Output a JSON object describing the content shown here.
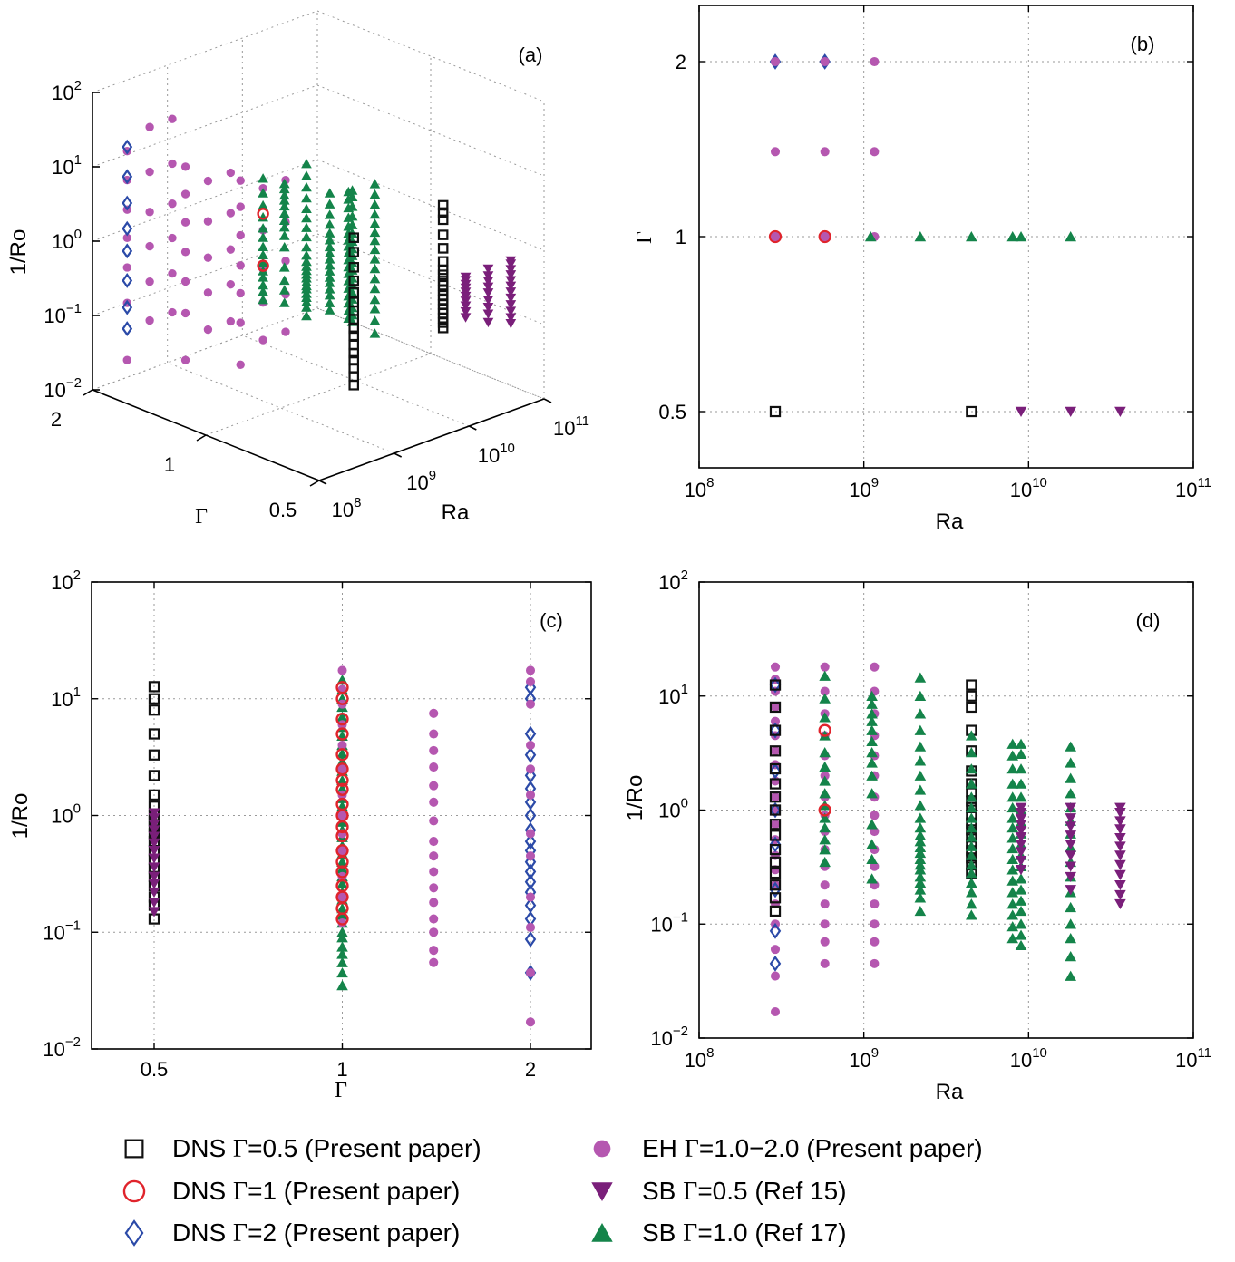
{
  "colors": {
    "dns_gamma_0_5": "#111111",
    "dns_gamma_1": "#e0242c",
    "dns_gamma_2": "#2b4aa8",
    "eh": "#b557b0",
    "sb_gamma_0_5": "#7a1f7a",
    "sb_gamma_1": "#14844a"
  },
  "series_styles": {
    "dns_gamma_0_5": "open-square",
    "dns_gamma_1": "open-circle",
    "dns_gamma_2": "open-diamond",
    "eh": "filled-circle",
    "sb_gamma_0_5": "filled-down-triangle",
    "sb_gamma_1": "filled-up-triangle"
  },
  "chart_data": [
    {
      "panel": "(a)",
      "type": "scatter",
      "projection": "3d",
      "xlabel": "Ra",
      "ylabel": "Γ",
      "zlabel": "1/Ro",
      "x_ticks": [
        {
          "base": "10",
          "exp": "8"
        },
        {
          "base": "10",
          "exp": "9"
        },
        {
          "base": "10",
          "exp": "10"
        },
        {
          "base": "10",
          "exp": "11"
        }
      ],
      "y_ticks": [
        "0.5",
        "1",
        "2"
      ],
      "z_ticks": [
        {
          "base": "10",
          "exp": "−2"
        },
        {
          "base": "10",
          "exp": "−1"
        },
        {
          "base": "10",
          "exp": "0"
        },
        {
          "base": "10",
          "exp": "1"
        },
        {
          "base": "10",
          "exp": "2"
        }
      ],
      "xlim": [
        100000000,
        100000000000
      ],
      "zlim": [
        0.01,
        100
      ],
      "log_x": true,
      "log_z": true,
      "grid": true
    },
    {
      "panel": "(b)",
      "type": "scatter",
      "xlabel": "Ra",
      "ylabel": "Γ",
      "x_ticks": [
        {
          "base": "10",
          "exp": "8"
        },
        {
          "base": "10",
          "exp": "9"
        },
        {
          "base": "10",
          "exp": "10"
        },
        {
          "base": "10",
          "exp": "11"
        }
      ],
      "y_ticks": [
        "0.5",
        "1",
        "2"
      ],
      "xlim": [
        100000000,
        100000000000
      ],
      "log_x": true,
      "grid": true,
      "series": [
        {
          "key": "dns_gamma_0_5",
          "points": [
            [
              290000000,
              0.5
            ],
            [
              4500000000,
              0.5
            ]
          ]
        },
        {
          "key": "dns_gamma_1",
          "points": [
            [
              290000000,
              1
            ],
            [
              580000000,
              1
            ]
          ]
        },
        {
          "key": "dns_gamma_2",
          "points": [
            [
              290000000,
              2
            ],
            [
              580000000,
              2
            ]
          ]
        },
        {
          "key": "eh",
          "points": [
            [
              290000000,
              2
            ],
            [
              290000000,
              1.4
            ],
            [
              290000000,
              1
            ],
            [
              580000000,
              2
            ],
            [
              580000000,
              1.4
            ],
            [
              580000000,
              1
            ],
            [
              1160000000,
              2
            ],
            [
              1160000000,
              1.4
            ],
            [
              1160000000,
              1
            ]
          ]
        },
        {
          "key": "sb_gamma_0_5",
          "points": [
            [
              9000000000,
              0.5
            ],
            [
              18000000000,
              0.5
            ],
            [
              36000000000,
              0.5
            ]
          ]
        },
        {
          "key": "sb_gamma_1",
          "points": [
            [
              1100000000,
              1
            ],
            [
              2200000000,
              1
            ],
            [
              4500000000,
              1
            ],
            [
              8000000000,
              1
            ],
            [
              9000000000,
              1
            ],
            [
              18000000000,
              1
            ]
          ]
        }
      ]
    },
    {
      "panel": "(c)",
      "type": "scatter",
      "xlabel": "Γ",
      "ylabel": "1/Ro",
      "x_ticks": [
        "0.5",
        "1",
        "2"
      ],
      "y_ticks": [
        {
          "base": "10",
          "exp": "−2"
        },
        {
          "base": "10",
          "exp": "−1"
        },
        {
          "base": "10",
          "exp": "0"
        },
        {
          "base": "10",
          "exp": "1"
        },
        {
          "base": "10",
          "exp": "2"
        }
      ],
      "ylim": [
        0.01,
        100
      ],
      "log_y": true,
      "grid": true,
      "series": [
        {
          "key": "dns_gamma_0_5",
          "gamma": 0.5,
          "values": [
            0.13,
            0.17,
            0.2,
            0.25,
            0.3,
            0.35,
            0.42,
            0.5,
            0.6,
            0.7,
            0.8,
            0.9,
            1,
            1.2,
            1.5,
            2.2,
            3.3,
            5,
            8,
            10,
            12.7
          ]
        },
        {
          "key": "sb_gamma_0_5",
          "gamma": 0.5,
          "values": [
            0.15,
            0.18,
            0.22,
            0.26,
            0.3,
            0.36,
            0.43,
            0.5,
            0.58,
            0.66,
            0.75,
            0.84,
            0.95,
            1.05
          ]
        },
        {
          "key": "sb_gamma_1",
          "gamma": 1,
          "values": [
            0.035,
            0.045,
            0.055,
            0.065,
            0.075,
            0.09,
            0.1,
            0.12,
            0.14,
            0.16,
            0.19,
            0.22,
            0.26,
            0.3,
            0.35,
            0.4,
            0.47,
            0.55,
            0.65,
            0.75,
            0.88,
            1,
            1.2,
            1.4,
            1.7,
            2,
            2.4,
            2.9,
            3.4,
            4,
            4.8,
            5.7,
            7,
            8.5,
            10,
            12,
            14.5
          ]
        },
        {
          "key": "eh",
          "gamma": 1,
          "values": [
            0.12,
            0.2,
            0.3,
            0.5,
            0.7,
            1,
            1.5,
            2.5,
            4,
            6,
            9,
            12,
            17.5
          ]
        },
        {
          "key": "dns_gamma_1",
          "gamma": 1,
          "values": [
            0.13,
            0.16,
            0.2,
            0.25,
            0.33,
            0.4,
            0.5,
            0.67,
            0.8,
            1,
            1.25,
            1.67,
            2,
            2.5,
            3.33,
            5,
            6.7,
            10,
            12.5
          ]
        },
        {
          "key": "eh",
          "gamma": 1.4,
          "values": [
            0.055,
            0.07,
            0.1,
            0.13,
            0.18,
            0.24,
            0.33,
            0.45,
            0.6,
            0.9,
            1.3,
            1.8,
            2.6,
            3.6,
            5,
            7.5
          ]
        },
        {
          "key": "dns_gamma_2",
          "gamma": 2,
          "values": [
            0.045,
            0.087,
            0.13,
            0.17,
            0.22,
            0.27,
            0.33,
            0.4,
            0.5,
            0.6,
            0.75,
            1,
            1.3,
            1.7,
            2.2,
            3.3,
            5,
            10,
            12.5
          ]
        },
        {
          "key": "eh",
          "gamma": 2,
          "values": [
            0.017,
            0.045,
            0.11,
            0.2,
            0.45,
            0.7,
            1.5,
            2.5,
            4,
            9,
            14,
            17.5
          ]
        }
      ]
    },
    {
      "panel": "(d)",
      "type": "scatter",
      "xlabel": "Ra",
      "ylabel": "1/Ro",
      "x_ticks": [
        {
          "base": "10",
          "exp": "8"
        },
        {
          "base": "10",
          "exp": "9"
        },
        {
          "base": "10",
          "exp": "10"
        },
        {
          "base": "10",
          "exp": "11"
        }
      ],
      "y_ticks": [
        {
          "base": "10",
          "exp": "−2"
        },
        {
          "base": "10",
          "exp": "−1"
        },
        {
          "base": "10",
          "exp": "0"
        },
        {
          "base": "10",
          "exp": "1"
        },
        {
          "base": "10",
          "exp": "2"
        }
      ],
      "xlim": [
        100000000,
        100000000000
      ],
      "ylim": [
        0.01,
        100
      ],
      "log_x": true,
      "log_y": true,
      "grid": true,
      "series": [
        {
          "key": "eh",
          "ra": 290000000,
          "values": [
            0.017,
            0.035,
            0.06,
            0.1,
            0.15,
            0.22,
            0.3,
            0.4,
            0.55,
            0.75,
            1,
            1.3,
            1.8,
            2.5,
            3.3,
            4.5,
            6,
            8,
            11,
            14,
            18
          ]
        },
        {
          "key": "dns_gamma_2",
          "ra": 290000000,
          "values": [
            0.045,
            0.087,
            0.2,
            0.5,
            1,
            2.2,
            5,
            12.5
          ]
        },
        {
          "key": "dns_gamma_0_5",
          "ra": 290000000,
          "values": [
            0.13,
            0.17,
            0.22,
            0.28,
            0.35,
            0.45,
            0.6,
            0.75,
            1,
            1.3,
            1.7,
            2.3,
            3.3,
            5,
            8,
            12.5
          ]
        },
        {
          "key": "eh",
          "ra": 580000000,
          "values": [
            0.045,
            0.07,
            0.1,
            0.15,
            0.22,
            0.32,
            0.45,
            0.65,
            0.9,
            1.3,
            2,
            3,
            4.5,
            7,
            11,
            18
          ]
        },
        {
          "key": "sb_gamma_1",
          "ra": 580000000,
          "values": [
            0.35,
            0.45,
            0.55,
            0.7,
            0.85,
            1.1,
            1.4,
            1.8,
            2.4,
            3.2,
            4.5,
            6.5,
            9.5,
            15
          ]
        },
        {
          "key": "dns_gamma_1",
          "ra": 580000000,
          "values": [
            1,
            5
          ]
        },
        {
          "key": "eh",
          "ra": 1160000000,
          "values": [
            0.045,
            0.07,
            0.1,
            0.15,
            0.22,
            0.32,
            0.45,
            0.65,
            0.9,
            1.3,
            2,
            3,
            4.5,
            7,
            11,
            18
          ]
        },
        {
          "key": "sb_gamma_1",
          "ra": 1120000000,
          "values": [
            0.25,
            0.37,
            0.5,
            0.75,
            1.4,
            2,
            2.6,
            3.2,
            4,
            5,
            6,
            7,
            8.5,
            10
          ]
        },
        {
          "key": "sb_gamma_1",
          "ra": 2200000000,
          "values": [
            0.13,
            0.17,
            0.2,
            0.23,
            0.26,
            0.3,
            0.33,
            0.37,
            0.42,
            0.47,
            0.53,
            0.6,
            0.7,
            0.85,
            1.1,
            1.5,
            2,
            2.7,
            3.6,
            5,
            7,
            10,
            14.5
          ]
        },
        {
          "key": "dns_gamma_0_5",
          "ra": 4500000000,
          "values": [
            0.28,
            0.33,
            0.38,
            0.44,
            0.5,
            0.58,
            0.67,
            0.77,
            0.9,
            1.05,
            1.2,
            1.45,
            1.7,
            2.2,
            3.3,
            5,
            8,
            10,
            12.5
          ]
        },
        {
          "key": "sb_gamma_1",
          "ra": 4500000000,
          "values": [
            0.12,
            0.15,
            0.19,
            0.23,
            0.28,
            0.33,
            0.4,
            0.48,
            0.58,
            0.7,
            0.85,
            1.05,
            1.3,
            1.7,
            2.3,
            3.2,
            4.5
          ]
        },
        {
          "key": "sb_gamma_1",
          "ra": 8000000000,
          "values": [
            0.075,
            0.095,
            0.12,
            0.15,
            0.19,
            0.24,
            0.3,
            0.37,
            0.46,
            0.57,
            0.7,
            0.85,
            1.05,
            1.3,
            1.7,
            2.3,
            3,
            3.8
          ]
        },
        {
          "key": "sb_gamma_1",
          "ra": 9000000000,
          "values": [
            0.065,
            0.08,
            0.1,
            0.13,
            0.16,
            0.2,
            0.25,
            0.32,
            0.4,
            0.5,
            0.62,
            0.78,
            1,
            1.3,
            1.7,
            2.3,
            3.1,
            3.8
          ]
        },
        {
          "key": "sb_gamma_0_5",
          "ra": 9000000000,
          "values": [
            0.3,
            0.36,
            0.43,
            0.5,
            0.58,
            0.66,
            0.75,
            0.84,
            0.95,
            1.05
          ]
        },
        {
          "key": "sb_gamma_1",
          "ra": 18000000000,
          "values": [
            0.035,
            0.052,
            0.075,
            0.1,
            0.14,
            0.19,
            0.26,
            0.35,
            0.47,
            0.62,
            0.8,
            1.05,
            1.4,
            1.9,
            2.6,
            3.6
          ]
        },
        {
          "key": "sb_gamma_0_5",
          "ra": 18000000000,
          "values": [
            0.2,
            0.26,
            0.32,
            0.4,
            0.5,
            0.6,
            0.72,
            0.85,
            1.05
          ]
        },
        {
          "key": "sb_gamma_0_5",
          "ra": 36000000000,
          "values": [
            0.15,
            0.18,
            0.22,
            0.27,
            0.33,
            0.4,
            0.48,
            0.57,
            0.68,
            0.8,
            0.95,
            1.05
          ]
        }
      ]
    }
  ],
  "legend": {
    "items": [
      {
        "key": "dns_gamma_0_5",
        "prefix": "DNS ",
        "gamma_symbol": "Γ",
        "suffix": "=0.5 (Present paper)"
      },
      {
        "key": "dns_gamma_1",
        "prefix": "DNS ",
        "gamma_symbol": "Γ",
        "suffix": "=1 (Present paper)"
      },
      {
        "key": "dns_gamma_2",
        "prefix": "DNS ",
        "gamma_symbol": "Γ",
        "suffix": "=2 (Present paper)"
      },
      {
        "key": "eh",
        "prefix": "EH ",
        "gamma_symbol": "Γ",
        "suffix": "=1.0−2.0 (Present paper)"
      },
      {
        "key": "sb_gamma_0_5",
        "prefix": "SB ",
        "gamma_symbol": "Γ",
        "suffix": "=0.5 (Ref 15)"
      },
      {
        "key": "sb_gamma_1",
        "prefix": "SB ",
        "gamma_symbol": "Γ",
        "suffix": "=1.0 (Ref 17)"
      }
    ]
  }
}
